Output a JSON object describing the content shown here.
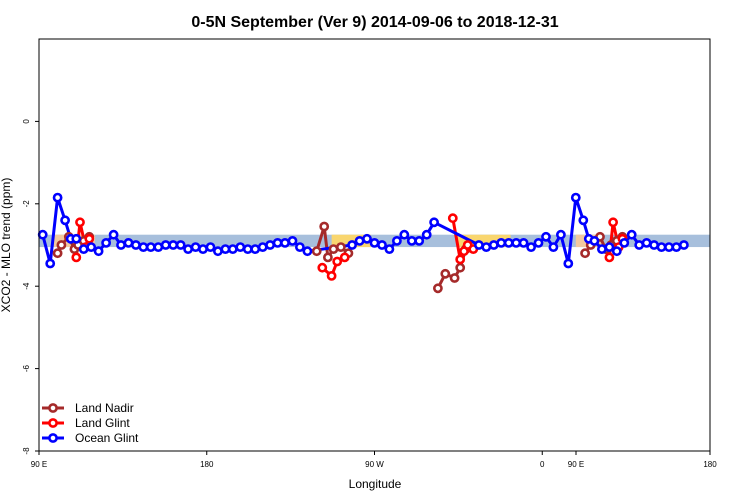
{
  "chart_data": {
    "type": "line",
    "title": "0-5N September (Ver 9)   2014-09-06 to 2018-12-31",
    "xlabel": "Longitude",
    "ylabel": "XCO2 - MLO trend (ppm)",
    "xlim": [
      90,
      450
    ],
    "ylim": [
      -8,
      2
    ],
    "x_ticks": [
      {
        "value": 90,
        "label": "90 E"
      },
      {
        "value": 180,
        "label": "180"
      },
      {
        "value": 270,
        "label": "90 W"
      },
      {
        "value": 360,
        "label": "0"
      },
      {
        "value": 450,
        "label": "180"
      }
    ],
    "x_ticks_extra": [
      {
        "value": 162,
        "label": "90 E"
      }
    ],
    "y_ticks": [
      {
        "value": 0,
        "label": "0"
      },
      {
        "value": -2,
        "label": "-2"
      },
      {
        "value": -4,
        "label": "-4"
      },
      {
        "value": -6,
        "label": "-6"
      },
      {
        "value": -8,
        "label": "-8"
      }
    ],
    "legend_position": "bottom-left",
    "bands": [
      {
        "x0": 90,
        "x1": 450,
        "y0": -3.05,
        "y1": -2.75,
        "color": "#a7bfdc"
      },
      {
        "x0": 247,
        "x1": 268,
        "y0": -3.05,
        "y1": -2.75,
        "color": "#f9d66f"
      },
      {
        "x0": 314,
        "x1": 343,
        "y0": -3.05,
        "y1": -2.75,
        "color": "#f9d66f"
      },
      {
        "x0": 98,
        "x1": 120,
        "y0": -3.05,
        "y1": -2.75,
        "color": "#f2c9a0"
      },
      {
        "x0": 378,
        "x1": 392,
        "y0": -3.05,
        "y1": -2.75,
        "color": "#f2c9a0"
      }
    ],
    "series": [
      {
        "name": "Land Nadir",
        "color": "#a52a2a",
        "segments": [
          [
            [
              100,
              -3.2
            ],
            [
              102,
              -3.0
            ],
            [
              106,
              -2.8
            ],
            [
              109,
              -3.1
            ],
            [
              111,
              -3.0
            ],
            [
              114,
              -2.9
            ],
            [
              117,
              -2.8
            ]
          ],
          [
            [
              239,
              -3.15
            ],
            [
              243,
              -2.55
            ],
            [
              245,
              -3.3
            ],
            [
              248,
              -3.1
            ],
            [
              252,
              -3.05
            ],
            [
              256,
              -3.2
            ]
          ],
          [
            [
              304,
              -4.05
            ],
            [
              308,
              -3.7
            ],
            [
              313,
              -3.8
            ],
            [
              316,
              -3.55
            ],
            [
              319,
              -3.1
            ]
          ],
          [
            [
              383,
              -3.2
            ],
            [
              386,
              -3.0
            ],
            [
              391,
              -2.8
            ],
            [
              394,
              -3.1
            ],
            [
              397,
              -3.0
            ],
            [
              400,
              -2.9
            ],
            [
              403,
              -2.8
            ]
          ]
        ]
      },
      {
        "name": "Land Glint",
        "color": "#ff0000",
        "segments": [
          [
            [
              110,
              -3.3
            ],
            [
              112,
              -2.45
            ],
            [
              115,
              -3.05
            ],
            [
              117,
              -2.85
            ]
          ],
          [
            [
              242,
              -3.55
            ],
            [
              247,
              -3.75
            ],
            [
              250,
              -3.4
            ],
            [
              254,
              -3.3
            ]
          ],
          [
            [
              312,
              -2.35
            ],
            [
              316,
              -3.35
            ],
            [
              318,
              -3.15
            ],
            [
              320,
              -3.0
            ],
            [
              323,
              -3.1
            ]
          ],
          [
            [
              396,
              -3.3
            ],
            [
              398,
              -2.45
            ],
            [
              401,
              -3.05
            ],
            [
              403,
              -2.85
            ]
          ]
        ]
      },
      {
        "name": "Ocean Glint",
        "color": "#0000ff",
        "points": [
          [
            92,
            -2.75
          ],
          [
            96,
            -3.45
          ],
          [
            100,
            -1.85
          ],
          [
            104,
            -2.4
          ],
          [
            107,
            -2.85
          ],
          [
            110,
            -2.85
          ],
          [
            114,
            -3.1
          ],
          [
            118,
            -3.05
          ],
          [
            122,
            -3.15
          ],
          [
            126,
            -2.95
          ],
          [
            130,
            -2.75
          ],
          [
            134,
            -3.0
          ],
          [
            138,
            -2.95
          ],
          [
            142,
            -3.0
          ],
          [
            146,
            -3.05
          ],
          [
            150,
            -3.05
          ],
          [
            154,
            -3.05
          ],
          [
            158,
            -3.0
          ],
          [
            162,
            -3.0
          ],
          [
            166,
            -3.0
          ],
          [
            170,
            -3.1
          ],
          [
            174,
            -3.05
          ],
          [
            178,
            -3.1
          ],
          [
            182,
            -3.05
          ],
          [
            186,
            -3.15
          ],
          [
            190,
            -3.1
          ],
          [
            194,
            -3.1
          ],
          [
            198,
            -3.05
          ],
          [
            202,
            -3.1
          ],
          [
            206,
            -3.1
          ],
          [
            210,
            -3.05
          ],
          [
            214,
            -3.0
          ],
          [
            218,
            -2.95
          ],
          [
            222,
            -2.95
          ],
          [
            226,
            -2.9
          ],
          [
            230,
            -3.05
          ],
          [
            234,
            -3.15
          ],
          [
            258,
            -3.0
          ],
          [
            262,
            -2.9
          ],
          [
            266,
            -2.85
          ],
          [
            270,
            -2.95
          ],
          [
            274,
            -3.0
          ],
          [
            278,
            -3.1
          ],
          [
            282,
            -2.9
          ],
          [
            286,
            -2.75
          ],
          [
            290,
            -2.9
          ],
          [
            294,
            -2.9
          ],
          [
            298,
            -2.75
          ],
          [
            302,
            -2.45
          ],
          [
            326,
            -3.0
          ],
          [
            330,
            -3.05
          ],
          [
            334,
            -3.0
          ],
          [
            338,
            -2.95
          ],
          [
            342,
            -2.95
          ],
          [
            346,
            -2.95
          ],
          [
            350,
            -2.95
          ],
          [
            354,
            -3.05
          ],
          [
            358,
            -2.95
          ],
          [
            362,
            -2.8
          ],
          [
            366,
            -3.05
          ],
          [
            370,
            -2.75
          ],
          [
            374,
            -3.45
          ],
          [
            378,
            -1.85
          ],
          [
            382,
            -2.4
          ],
          [
            385,
            -2.85
          ],
          [
            388,
            -2.9
          ],
          [
            392,
            -3.1
          ],
          [
            396,
            -3.05
          ],
          [
            400,
            -3.15
          ],
          [
            404,
            -2.95
          ],
          [
            408,
            -2.75
          ],
          [
            412,
            -3.0
          ],
          [
            416,
            -2.95
          ],
          [
            420,
            -3.0
          ],
          [
            424,
            -3.05
          ],
          [
            428,
            -3.05
          ],
          [
            432,
            -3.05
          ],
          [
            436,
            -3.0
          ]
        ]
      }
    ]
  }
}
